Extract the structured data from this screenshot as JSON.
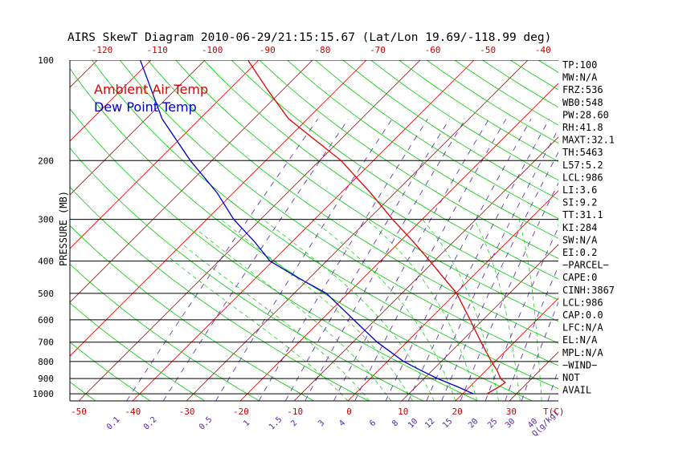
{
  "chart_data": {
    "type": "line",
    "title": "AIRS SkewT Diagram 2010-06-29/21:15:15.67 (Lat/Lon 19.69/-118.99 deg)",
    "ylabel": "PRESSURE (MB)",
    "y_scale": "log",
    "ylim": [
      1050,
      100
    ],
    "xlim": [
      -50,
      45
    ],
    "pressure_ticks": [
      100,
      200,
      300,
      400,
      500,
      600,
      700,
      800,
      900,
      1000
    ],
    "bottom_temp_ticks": [
      -50,
      -40,
      -30,
      -20,
      -10,
      0,
      10,
      20,
      30
    ],
    "bottom_temp_unit": "T(C)",
    "top_temp_ticks": [
      -120,
      -110,
      -100,
      -90,
      -80,
      -70,
      -60,
      -50,
      -40
    ],
    "mixing_ratio_ticks": [
      "0.1",
      "0.2",
      "0.5",
      "1",
      "1.5",
      "2",
      "3",
      "4",
      "6",
      "8",
      "10",
      "12",
      "15",
      "20",
      "25",
      "30",
      "40"
    ],
    "mixing_ratio_unit": "Q(g/kg)",
    "legend": [
      "Ambient Air Temp",
      "Dew Point Temp"
    ],
    "series": [
      {
        "name": "Ambient Air Temp",
        "color": "#e00000",
        "points": [
          {
            "p": 1000,
            "t": 24.5
          },
          {
            "p": 975,
            "t": 25.0
          },
          {
            "p": 950,
            "t": 25.5
          },
          {
            "p": 925,
            "t": 25.8
          },
          {
            "p": 900,
            "t": 24.2
          },
          {
            "p": 850,
            "t": 22.0
          },
          {
            "p": 800,
            "t": 19.3
          },
          {
            "p": 700,
            "t": 13.8
          },
          {
            "p": 600,
            "t": 7.6
          },
          {
            "p": 500,
            "t": 0.2
          },
          {
            "p": 450,
            "t": -5.0
          },
          {
            "p": 400,
            "t": -10.8
          },
          {
            "p": 350,
            "t": -17.5
          },
          {
            "p": 300,
            "t": -25.5
          },
          {
            "p": 250,
            "t": -34.5
          },
          {
            "p": 200,
            "t": -46.0
          },
          {
            "p": 150,
            "t": -63.5
          },
          {
            "p": 125,
            "t": -72.0
          },
          {
            "p": 100,
            "t": -82.0
          }
        ]
      },
      {
        "name": "Dew Point Temp",
        "color": "#0000cc",
        "points": [
          {
            "p": 1000,
            "t": 22.0
          },
          {
            "p": 950,
            "t": 17.5
          },
          {
            "p": 900,
            "t": 12.5
          },
          {
            "p": 850,
            "t": 7.8
          },
          {
            "p": 800,
            "t": 3.0
          },
          {
            "p": 700,
            "t": -5.5
          },
          {
            "p": 600,
            "t": -14.0
          },
          {
            "p": 500,
            "t": -24.0
          },
          {
            "p": 450,
            "t": -32.0
          },
          {
            "p": 400,
            "t": -40.5
          },
          {
            "p": 350,
            "t": -47.0
          },
          {
            "p": 300,
            "t": -55.0
          },
          {
            "p": 250,
            "t": -63.0
          },
          {
            "p": 200,
            "t": -74.0
          },
          {
            "p": 150,
            "t": -87.0
          },
          {
            "p": 100,
            "t": -102.0
          }
        ]
      }
    ],
    "indices": [
      "TP:100",
      "MW:N/A",
      "FRZ:536",
      "WB0:548",
      "PW:28.60",
      "RH:41.8",
      "MAXT:32.1",
      "TH:5463",
      "L57:5.2",
      "LCL:986",
      "LI:3.6",
      "SI:9.2",
      "TT:31.1",
      "KI:284",
      "SW:N/A",
      "EI:0.2",
      "−PARCEL−",
      "CAPE:0",
      "CINH:3867",
      "LCL:986",
      "CAP:0.0",
      "LFC:N/A",
      "EL:N/A",
      "MPL:N/A",
      "−WIND−",
      "NOT",
      "AVAIL"
    ],
    "colors": {
      "ambient": "#e00000",
      "dewpoint": "#0000cc",
      "dry_adiabat": "#00cc00",
      "moist_adiabat": "#00cc00",
      "isotherm": "#cc0000",
      "mixing_ratio": "#5522aa",
      "isobar": "#000000"
    }
  }
}
